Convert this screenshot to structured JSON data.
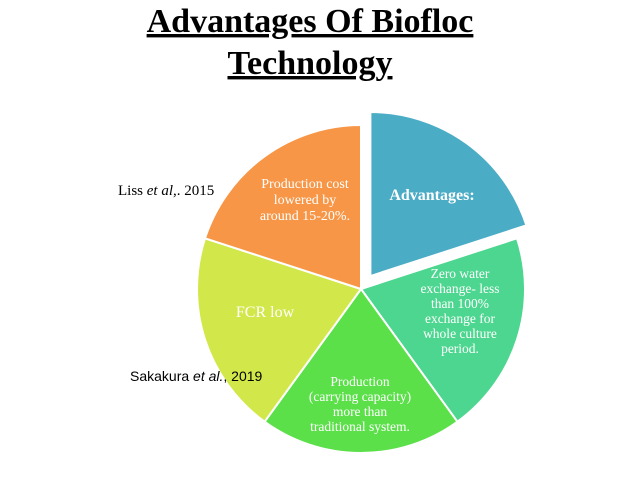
{
  "header": {
    "title_lines": [
      "Advantages Of Biofloc",
      "Technology"
    ]
  },
  "segments": [
    {
      "lines": [
        "Advantages:"
      ]
    },
    {
      "lines": [
        "Zero water",
        "exchange- less",
        "than 100%",
        "exchange for",
        "whole culture",
        "period."
      ]
    },
    {
      "lines": [
        "Production",
        "(carrying capacity)",
        "more  than",
        "traditional system."
      ]
    },
    {
      "lines": [
        "FCR low"
      ]
    },
    {
      "lines": [
        "Production cost",
        "lowered by",
        "around 15-20%."
      ]
    }
  ],
  "citations": [
    {
      "parts": [
        "Liss ",
        "et al",
        ",. 2015"
      ]
    },
    {
      "parts": [
        "Sakakura ",
        "et al.",
        ", 2019"
      ]
    }
  ]
}
